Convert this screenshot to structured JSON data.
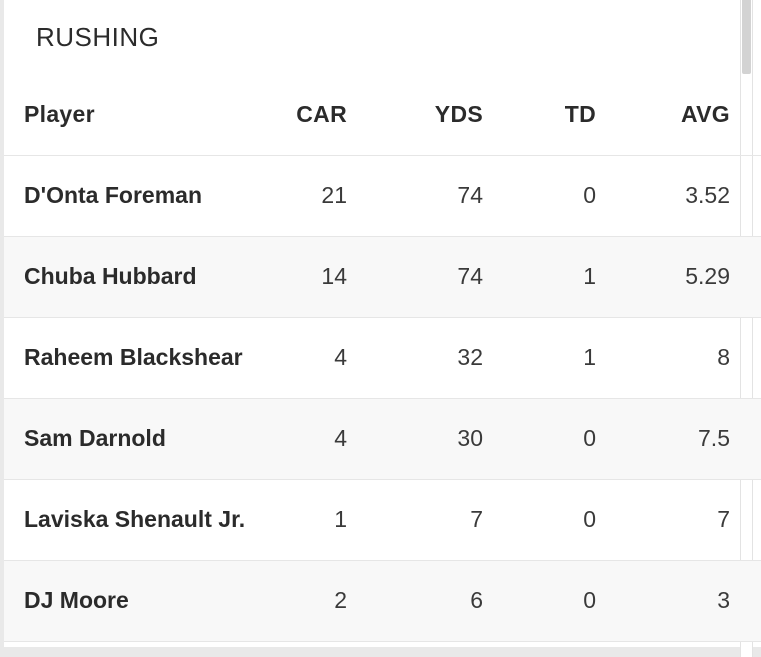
{
  "section": {
    "title": "RUSHING"
  },
  "table": {
    "columns": [
      "Player",
      "CAR",
      "YDS",
      "TD",
      "AVG"
    ],
    "rows": [
      {
        "player": "D'Onta Foreman",
        "car": "21",
        "yds": "74",
        "td": "0",
        "avg": "3.52"
      },
      {
        "player": "Chuba Hubbard",
        "car": "14",
        "yds": "74",
        "td": "1",
        "avg": "5.29"
      },
      {
        "player": "Raheem Blackshear",
        "car": "4",
        "yds": "32",
        "td": "1",
        "avg": "8"
      },
      {
        "player": "Sam Darnold",
        "car": "4",
        "yds": "30",
        "td": "0",
        "avg": "7.5"
      },
      {
        "player": "Laviska Shenault Jr.",
        "car": "1",
        "yds": "7",
        "td": "0",
        "avg": "7"
      },
      {
        "player": "DJ Moore",
        "car": "2",
        "yds": "6",
        "td": "0",
        "avg": "3"
      }
    ]
  },
  "colors": {
    "row_alt": "#f8f8f8",
    "divider": "#e6e6e6",
    "text": "#2b2b2b"
  }
}
